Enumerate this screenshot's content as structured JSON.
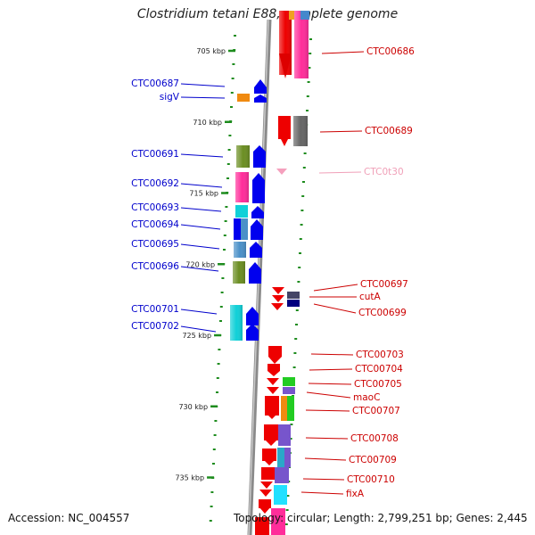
{
  "title": "Clostridium tetani E88, complete genome",
  "footer": {
    "accession": "Accession: NC_004557",
    "summary": "Topology: circular; Length: 2,799,251 bp; Genes: 2,445"
  },
  "ticks": [
    {
      "label": "705 kbp",
      "pos": 705
    },
    {
      "label": "710 kbp",
      "pos": 710
    },
    {
      "label": "715 kbp",
      "pos": 715
    },
    {
      "label": "720 kbp",
      "pos": 720
    },
    {
      "label": "725 kbp",
      "pos": 725
    },
    {
      "label": "730 kbp",
      "pos": 730
    },
    {
      "label": "735 kbp",
      "pos": 735
    }
  ],
  "genes_left": [
    {
      "name": "CTC00687",
      "color": "#0000cc"
    },
    {
      "name": "sigV",
      "color": "#0000cc"
    },
    {
      "name": "CTC00691",
      "color": "#0000cc"
    },
    {
      "name": "CTC00692",
      "color": "#0000cc"
    },
    {
      "name": "CTC00693",
      "color": "#0000cc"
    },
    {
      "name": "CTC00694",
      "color": "#0000cc"
    },
    {
      "name": "CTC00695",
      "color": "#0000cc"
    },
    {
      "name": "CTC00696",
      "color": "#0000cc"
    },
    {
      "name": "CTC00701",
      "color": "#0000cc"
    },
    {
      "name": "CTC00702",
      "color": "#0000cc"
    }
  ],
  "genes_right": [
    {
      "name": "CTC00686",
      "color": "#cc0000"
    },
    {
      "name": "CTC00689",
      "color": "#cc0000"
    },
    {
      "name": "CTC0t30",
      "color": "#f0a0b8"
    },
    {
      "name": "CTC00697",
      "color": "#cc0000"
    },
    {
      "name": "cutA",
      "color": "#cc0000"
    },
    {
      "name": "CTC00699",
      "color": "#cc0000"
    },
    {
      "name": "CTC00703",
      "color": "#cc0000"
    },
    {
      "name": "CTC00704",
      "color": "#cc0000"
    },
    {
      "name": "CTC00705",
      "color": "#cc0000"
    },
    {
      "name": "maoC",
      "color": "#cc0000"
    },
    {
      "name": "CTC00707",
      "color": "#cc0000"
    },
    {
      "name": "CTC00708",
      "color": "#cc0000"
    },
    {
      "name": "CTC00709",
      "color": "#cc0000"
    },
    {
      "name": "CTC00710",
      "color": "#cc0000"
    },
    {
      "name": "fixA",
      "color": "#cc0000"
    }
  ],
  "colors": {
    "forward_strand": "#0000ee",
    "reverse_strand": "#ee0000",
    "backbone": "#888888",
    "gc_dash": "#1e8c1e"
  }
}
